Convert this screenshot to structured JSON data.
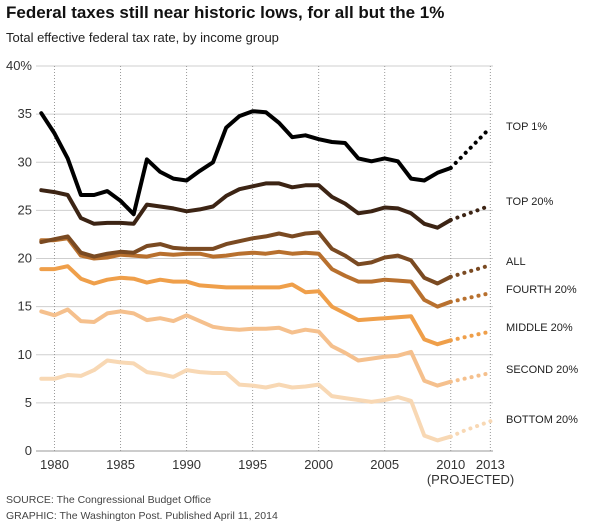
{
  "header": {
    "title": "Federal taxes still near historic lows, for all but the 1%",
    "subtitle": "Total effective federal tax rate, by income group"
  },
  "footer": {
    "source": "SOURCE: The Congressional Budget Office",
    "graphic": "GRAPHIC: The Washington Post. Published April 11, 2014"
  },
  "chart_data": {
    "type": "line",
    "title": "Federal taxes still near historic lows, for all but the 1%",
    "subtitle": "Total effective federal tax rate, by income group",
    "xlabel": "",
    "ylabel": "",
    "ylim": [
      0,
      40
    ],
    "y_ticks": [
      "0",
      "5",
      "10",
      "15",
      "20",
      "25",
      "30",
      "35",
      "40%"
    ],
    "x_ticks": [
      "1980",
      "1985",
      "1990",
      "1995",
      "2000",
      "2005",
      "2010",
      "2013"
    ],
    "x_tick_note": "(PROJECTED)",
    "grid": true,
    "x": [
      1979,
      1980,
      1981,
      1982,
      1983,
      1984,
      1985,
      1986,
      1987,
      1988,
      1989,
      1990,
      1991,
      1992,
      1993,
      1994,
      1995,
      1996,
      1997,
      1998,
      1999,
      2000,
      2001,
      2002,
      2003,
      2004,
      2005,
      2006,
      2007,
      2008,
      2009,
      2010
    ],
    "projected_x": [
      2010,
      2011,
      2012,
      2013
    ],
    "series": [
      {
        "name": "TOP 1%",
        "color": "#000000",
        "values": [
          35.1,
          33.0,
          30.4,
          26.6,
          26.6,
          27.0,
          26.0,
          24.6,
          30.3,
          29.0,
          28.3,
          28.1,
          29.1,
          30.0,
          33.6,
          34.8,
          35.3,
          35.2,
          34.1,
          32.6,
          32.8,
          32.4,
          32.1,
          32.0,
          30.4,
          30.1,
          30.4,
          30.1,
          28.3,
          28.1,
          28.9,
          29.4
        ],
        "projected": [
          29.4,
          30.8,
          32.2,
          33.6
        ]
      },
      {
        "name": "TOP 20%",
        "color": "#3c2414",
        "values": [
          27.1,
          26.9,
          26.6,
          24.2,
          23.6,
          23.7,
          23.7,
          23.6,
          25.6,
          25.4,
          25.2,
          24.9,
          25.1,
          25.4,
          26.5,
          27.2,
          27.5,
          27.8,
          27.8,
          27.4,
          27.6,
          27.6,
          26.4,
          25.7,
          24.7,
          24.9,
          25.3,
          25.2,
          24.7,
          23.6,
          23.2,
          24.0
        ],
        "projected": [
          24.0,
          24.5,
          25.0,
          25.5
        ]
      },
      {
        "name": "ALL",
        "color": "#7a4a22",
        "values": [
          21.7,
          22.0,
          22.3,
          20.6,
          20.2,
          20.5,
          20.7,
          20.6,
          21.3,
          21.5,
          21.1,
          21.0,
          21.0,
          21.0,
          21.5,
          21.8,
          22.1,
          22.3,
          22.6,
          22.3,
          22.6,
          22.7,
          21.0,
          20.3,
          19.4,
          19.6,
          20.1,
          20.3,
          19.8,
          18.0,
          17.4,
          18.1
        ],
        "projected": [
          18.1,
          18.5,
          18.9,
          19.3
        ]
      },
      {
        "name": "FOURTH 20%",
        "color": "#b8702e",
        "values": [
          21.9,
          21.9,
          22.1,
          20.3,
          20.0,
          20.1,
          20.4,
          20.3,
          20.2,
          20.5,
          20.4,
          20.5,
          20.5,
          20.2,
          20.3,
          20.5,
          20.6,
          20.5,
          20.7,
          20.5,
          20.6,
          20.5,
          18.9,
          18.2,
          17.6,
          17.6,
          17.8,
          17.7,
          17.6,
          15.7,
          15.0,
          15.5
        ],
        "projected": [
          15.5,
          15.8,
          16.1,
          16.4
        ]
      },
      {
        "name": "MIDDLE 20%",
        "color": "#ef9f4a",
        "values": [
          18.9,
          18.9,
          19.2,
          17.9,
          17.4,
          17.8,
          18.0,
          17.9,
          17.5,
          17.8,
          17.6,
          17.6,
          17.2,
          17.1,
          17.0,
          17.0,
          17.0,
          17.0,
          17.0,
          17.3,
          16.5,
          16.6,
          15.0,
          14.3,
          13.6,
          13.7,
          13.8,
          13.9,
          14.0,
          11.6,
          11.1,
          11.5
        ],
        "projected": [
          11.5,
          11.8,
          12.1,
          12.4
        ]
      },
      {
        "name": "SECOND 20%",
        "color": "#f5c08d",
        "values": [
          14.5,
          14.1,
          14.7,
          13.5,
          13.4,
          14.3,
          14.5,
          14.3,
          13.6,
          13.8,
          13.5,
          14.1,
          13.5,
          12.9,
          12.7,
          12.6,
          12.7,
          12.7,
          12.8,
          12.3,
          12.6,
          12.4,
          10.9,
          10.2,
          9.4,
          9.6,
          9.8,
          9.9,
          10.3,
          7.3,
          6.8,
          7.2
        ],
        "projected": [
          7.2,
          7.5,
          7.8,
          8.1
        ]
      },
      {
        "name": "BOTTOM 20%",
        "color": "#f8d8b4",
        "values": [
          7.5,
          7.5,
          7.9,
          7.8,
          8.4,
          9.4,
          9.2,
          9.1,
          8.2,
          8.0,
          7.7,
          8.4,
          8.2,
          8.1,
          8.1,
          6.9,
          6.8,
          6.6,
          6.9,
          6.6,
          6.7,
          6.9,
          5.7,
          5.5,
          5.3,
          5.1,
          5.3,
          5.6,
          5.2,
          1.6,
          1.1,
          1.5
        ],
        "projected": [
          1.5,
          2.1,
          2.6,
          3.1
        ]
      }
    ]
  }
}
